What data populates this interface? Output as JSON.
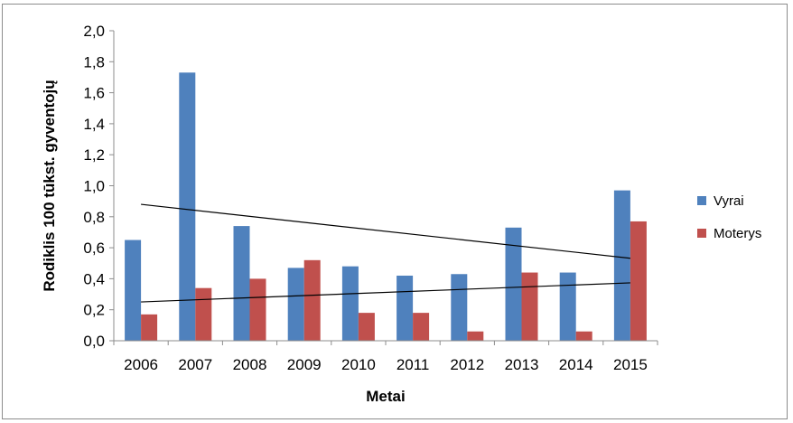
{
  "chart_data": {
    "type": "bar",
    "categories": [
      "2006",
      "2007",
      "2008",
      "2009",
      "2010",
      "2011",
      "2012",
      "2013",
      "2014",
      "2015"
    ],
    "series": [
      {
        "name": "Vyrai",
        "color": "#4f81bd",
        "values": [
          0.65,
          1.73,
          0.74,
          0.47,
          0.48,
          0.42,
          0.43,
          0.73,
          0.44,
          0.97
        ]
      },
      {
        "name": "Moterys",
        "color": "#c0504d",
        "values": [
          0.17,
          0.34,
          0.4,
          0.52,
          0.18,
          0.18,
          0.06,
          0.44,
          0.06,
          0.77
        ]
      }
    ],
    "trendlines": [
      {
        "series": "Vyrai",
        "type": "linear",
        "color": "#000000"
      },
      {
        "series": "Moterys",
        "type": "linear",
        "color": "#000000"
      }
    ],
    "xlabel": "Metai",
    "ylabel": "Rodiklis 100 tūkst. gyventojų",
    "ylim": [
      0,
      2.0
    ],
    "yticks": [
      "0,0",
      "0,2",
      "0,4",
      "0,6",
      "0,8",
      "1,0",
      "1,2",
      "1,4",
      "1,6",
      "1,8",
      "2,0"
    ],
    "grid": false,
    "legend_position": "right"
  }
}
